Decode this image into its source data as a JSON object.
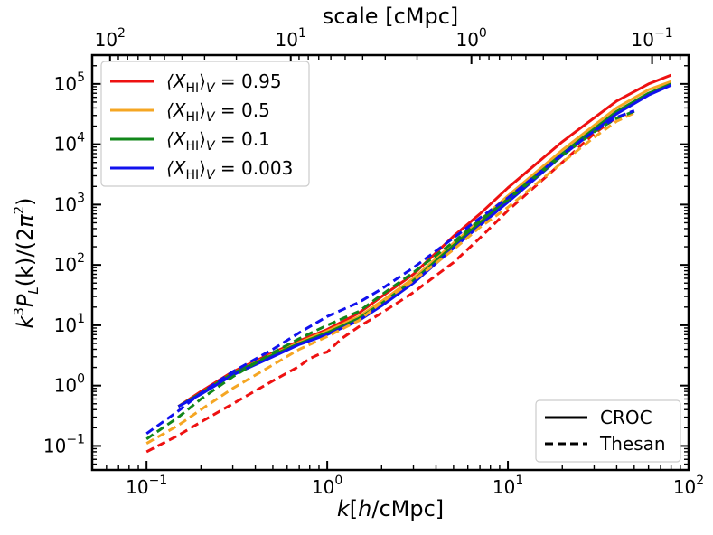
{
  "chart_data": {
    "type": "line",
    "xscale": "log",
    "yscale": "log",
    "xlim": [
      0.05,
      100
    ],
    "ylim": [
      0.04,
      300000
    ],
    "xlabel": "k[h/cMpc]",
    "xlabel_parts": {
      "k": "k",
      "bracket_open": "[",
      "h": "h",
      "unit": "/cMpc]"
    },
    "ylabel": "k^3 P_L(k) / (2π^2)",
    "ylabel_parts": {
      "k": "k",
      "exp3": "3",
      "P": "P",
      "sub": "L",
      "mid": "(k)/(2",
      "pi": "π",
      "exp2": "2",
      "close": ")"
    },
    "top_axis": {
      "label": "scale [cMpc]",
      "ticks": [
        {
          "k": 0.0628,
          "base": "10",
          "exp": "2"
        },
        {
          "k": 0.628,
          "base": "10",
          "exp": "1"
        },
        {
          "k": 6.28,
          "base": "10",
          "exp": "0"
        },
        {
          "k": 62.8,
          "base": "10",
          "exp": "−1"
        }
      ]
    },
    "x_ticks": [
      {
        "value": 0.1,
        "base": "10",
        "exp": "−1"
      },
      {
        "value": 1,
        "base": "10",
        "exp": "0"
      },
      {
        "value": 10,
        "base": "10",
        "exp": "1"
      },
      {
        "value": 100,
        "base": "10",
        "exp": "2"
      }
    ],
    "y_ticks": [
      {
        "value": 0.1,
        "base": "10",
        "exp": "−1"
      },
      {
        "value": 1,
        "base": "10",
        "exp": "0"
      },
      {
        "value": 10,
        "base": "10",
        "exp": "1"
      },
      {
        "value": 100,
        "base": "10",
        "exp": "2"
      },
      {
        "value": 1000,
        "base": "10",
        "exp": "3"
      },
      {
        "value": 10000,
        "base": "10",
        "exp": "4"
      },
      {
        "value": 100000,
        "base": "10",
        "exp": "5"
      }
    ],
    "legend_colors": {
      "location": "upper-left",
      "entries": [
        {
          "prefix": "⟨X",
          "sub": "HI",
          "suffix": "⟩",
          "subV": "V",
          "value": " = 0.95",
          "color": "#ee1111"
        },
        {
          "prefix": "⟨X",
          "sub": "HI",
          "suffix": "⟩",
          "subV": "V",
          "value": " = 0.5",
          "color": "#f5a623"
        },
        {
          "prefix": "⟨X",
          "sub": "HI",
          "suffix": "⟩",
          "subV": "V",
          "value": " = 0.1",
          "color": "#12871a"
        },
        {
          "prefix": "⟨X",
          "sub": "HI",
          "suffix": "⟩",
          "subV": "V",
          "value": " = 0.003",
          "color": "#1111ee"
        }
      ]
    },
    "legend_styles": {
      "location": "lower-right",
      "entries": [
        {
          "label": "CROC",
          "dash": "solid"
        },
        {
          "label": "Thesan",
          "dash": "dashed"
        }
      ]
    },
    "series": [
      {
        "name": "CROC ⟨X_HI⟩_V=0.95",
        "color": "#ee1111",
        "dash": "solid",
        "points": [
          [
            0.15,
            0.45
          ],
          [
            0.2,
            0.8
          ],
          [
            0.3,
            1.7
          ],
          [
            0.5,
            3.5
          ],
          [
            0.7,
            5.5
          ],
          [
            1,
            8.5
          ],
          [
            1.5,
            16
          ],
          [
            2,
            30
          ],
          [
            3,
            70
          ],
          [
            5,
            300
          ],
          [
            7,
            700
          ],
          [
            10,
            1900
          ],
          [
            20,
            11000
          ],
          [
            40,
            52000
          ],
          [
            60,
            100000
          ],
          [
            80,
            140000
          ]
        ]
      },
      {
        "name": "CROC ⟨X_HI⟩_V=0.5",
        "color": "#f5a623",
        "dash": "solid",
        "points": [
          [
            0.15,
            0.45
          ],
          [
            0.2,
            0.75
          ],
          [
            0.3,
            1.6
          ],
          [
            0.5,
            3.3
          ],
          [
            0.7,
            5.2
          ],
          [
            1,
            8
          ],
          [
            1.5,
            14
          ],
          [
            2,
            25
          ],
          [
            3,
            60
          ],
          [
            5,
            230
          ],
          [
            7,
            550
          ],
          [
            10,
            1400
          ],
          [
            20,
            8000
          ],
          [
            40,
            40000
          ],
          [
            60,
            80000
          ],
          [
            80,
            110000
          ]
        ]
      },
      {
        "name": "CROC ⟨X_HI⟩_V=0.1",
        "color": "#12871a",
        "dash": "solid",
        "points": [
          [
            0.15,
            0.45
          ],
          [
            0.2,
            0.75
          ],
          [
            0.3,
            1.6
          ],
          [
            0.5,
            3.2
          ],
          [
            0.7,
            5
          ],
          [
            1,
            7.5
          ],
          [
            1.5,
            13
          ],
          [
            2,
            23
          ],
          [
            3,
            55
          ],
          [
            5,
            210
          ],
          [
            7,
            500
          ],
          [
            10,
            1250
          ],
          [
            20,
            7000
          ],
          [
            40,
            35000
          ],
          [
            60,
            70000
          ],
          [
            80,
            100000
          ]
        ]
      },
      {
        "name": "CROC ⟨X_HI⟩_V=0.003",
        "color": "#1111ee",
        "dash": "solid",
        "points": [
          [
            0.15,
            0.45
          ],
          [
            0.2,
            0.72
          ],
          [
            0.3,
            1.5
          ],
          [
            0.5,
            3
          ],
          [
            0.7,
            4.8
          ],
          [
            1,
            7
          ],
          [
            1.5,
            12
          ],
          [
            2,
            21
          ],
          [
            3,
            50
          ],
          [
            5,
            190
          ],
          [
            7,
            450
          ],
          [
            10,
            1100
          ],
          [
            20,
            6500
          ],
          [
            40,
            32000
          ],
          [
            60,
            65000
          ],
          [
            80,
            95000
          ]
        ]
      },
      {
        "name": "Thesan ⟨X_HI⟩_V=0.95",
        "color": "#ee1111",
        "dash": "dashed",
        "points": [
          [
            0.1,
            0.08
          ],
          [
            0.15,
            0.15
          ],
          [
            0.2,
            0.25
          ],
          [
            0.3,
            0.5
          ],
          [
            0.5,
            1.2
          ],
          [
            0.7,
            2.1
          ],
          [
            0.8,
            2.8
          ],
          [
            0.9,
            3.3
          ],
          [
            1,
            3.6
          ],
          [
            1.2,
            6
          ],
          [
            1.5,
            9.5
          ],
          [
            2,
            16
          ],
          [
            3,
            35
          ],
          [
            5,
            110
          ],
          [
            7,
            280
          ],
          [
            10,
            800
          ],
          [
            20,
            5000
          ],
          [
            30,
            15000
          ],
          [
            40,
            28000
          ],
          [
            50,
            35000
          ]
        ]
      },
      {
        "name": "Thesan ⟨X_HI⟩_V=0.5",
        "color": "#f5a623",
        "dash": "dashed",
        "points": [
          [
            0.1,
            0.11
          ],
          [
            0.15,
            0.22
          ],
          [
            0.2,
            0.4
          ],
          [
            0.3,
            0.9
          ],
          [
            0.5,
            2.2
          ],
          [
            0.7,
            4
          ],
          [
            1,
            6.5
          ],
          [
            1.5,
            12
          ],
          [
            2,
            24
          ],
          [
            3,
            55
          ],
          [
            5,
            180
          ],
          [
            7,
            420
          ],
          [
            10,
            900
          ],
          [
            20,
            5000
          ],
          [
            30,
            13000
          ],
          [
            40,
            24000
          ],
          [
            50,
            33000
          ]
        ]
      },
      {
        "name": "Thesan ⟨X_HI⟩_V=0.1",
        "color": "#12871a",
        "dash": "dashed",
        "points": [
          [
            0.1,
            0.13
          ],
          [
            0.15,
            0.3
          ],
          [
            0.2,
            0.6
          ],
          [
            0.3,
            1.4
          ],
          [
            0.5,
            3.5
          ],
          [
            0.7,
            6
          ],
          [
            1,
            10
          ],
          [
            1.5,
            17
          ],
          [
            2,
            32
          ],
          [
            3,
            75
          ],
          [
            5,
            240
          ],
          [
            7,
            560
          ],
          [
            10,
            1200
          ],
          [
            20,
            6500
          ],
          [
            30,
            16000
          ],
          [
            40,
            27000
          ],
          [
            50,
            35000
          ]
        ]
      },
      {
        "name": "Thesan ⟨X_HI⟩_V=0.003",
        "color": "#1111ee",
        "dash": "dashed",
        "points": [
          [
            0.1,
            0.16
          ],
          [
            0.15,
            0.38
          ],
          [
            0.2,
            0.75
          ],
          [
            0.3,
            1.7
          ],
          [
            0.5,
            4
          ],
          [
            0.7,
            7.5
          ],
          [
            1,
            14
          ],
          [
            1.5,
            24
          ],
          [
            2,
            40
          ],
          [
            3,
            90
          ],
          [
            5,
            280
          ],
          [
            7,
            600
          ],
          [
            10,
            1300
          ],
          [
            20,
            6800
          ],
          [
            30,
            16500
          ],
          [
            40,
            28000
          ],
          [
            50,
            36000
          ]
        ]
      }
    ]
  }
}
